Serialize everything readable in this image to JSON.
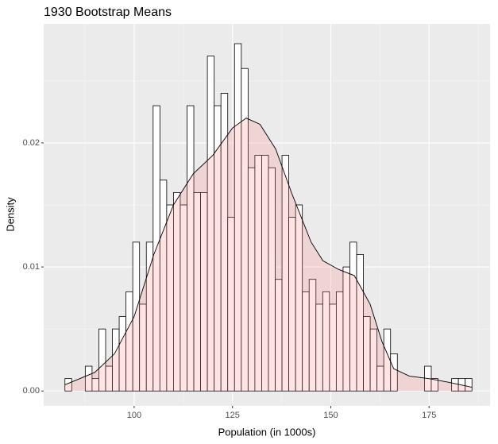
{
  "chart_data": {
    "type": "histogram",
    "title": "1930 Bootstrap Means",
    "xlabel": "Population (in 1000s)",
    "ylabel": "Density",
    "bins": [
      82.4,
      84.125,
      85.85,
      87.575,
      89.3,
      91.025,
      92.75,
      94.475,
      96.2,
      97.925,
      99.65,
      101.375,
      103.1,
      104.825,
      106.55,
      108.275,
      110,
      111.725,
      113.45,
      115.175,
      116.9,
      118.625,
      120.35,
      122.075,
      123.8,
      125.525,
      127.25,
      128.975,
      130.7,
      132.425,
      134.15,
      135.875,
      137.6,
      139.325,
      141.05,
      142.775,
      144.5,
      146.225,
      147.95,
      149.675,
      151.4,
      153.125,
      154.85,
      156.575,
      158.3,
      160.025,
      161.75,
      163.475,
      165.2,
      166.925,
      168.65,
      170.375,
      172.1,
      173.825,
      175.55,
      177.275,
      179,
      180.725,
      182.45,
      184.175,
      185.9
    ],
    "values": [
      0.001,
      0,
      0,
      0.002,
      0.001,
      0.005,
      0.002,
      0.005,
      0.006,
      0.008,
      0.012,
      0.007,
      0.012,
      0.023,
      0.017,
      0.015,
      0.016,
      0.015,
      0.023,
      0.016,
      0.016,
      0.027,
      0.023,
      0.024,
      0.014,
      0.028,
      0.026,
      0.018,
      0.019,
      0.019,
      0.018,
      0.009,
      0.019,
      0.014,
      0.015,
      0.008,
      0.009,
      0.007,
      0.008,
      0.007,
      0.008,
      0.01,
      0.012,
      0.011,
      0.006,
      0.005,
      0.002,
      0.005,
      0.003,
      0,
      0,
      0,
      0,
      0.002,
      0.001,
      0,
      0,
      0.001,
      0.001,
      0.001
    ],
    "bar_fill": "#ffffff",
    "bar_edge": "#000000",
    "density": {
      "x": [
        82.4,
        90,
        95,
        100,
        105,
        110,
        115,
        120,
        125,
        128.5,
        132,
        136,
        140,
        145,
        148,
        152,
        156,
        160,
        163,
        166,
        170,
        175,
        180,
        185.9
      ],
      "y": [
        0.0005,
        0.0015,
        0.003,
        0.006,
        0.011,
        0.015,
        0.0175,
        0.019,
        0.0212,
        0.022,
        0.0215,
        0.0195,
        0.016,
        0.012,
        0.0105,
        0.0098,
        0.0093,
        0.007,
        0.004,
        0.0018,
        0.0012,
        0.001,
        0.0007,
        0.0003
      ],
      "color": "#f8766d"
    },
    "xlim": [
      77.0,
      190.5
    ],
    "ylim": [
      -0.0012,
      0.0296
    ],
    "xticks": [
      100,
      125,
      150,
      175
    ],
    "yticks": [
      {
        "value": 0,
        "label": "0.00"
      },
      {
        "value": 0.01,
        "label": "0.01"
      },
      {
        "value": 0.02,
        "label": "0.02"
      }
    ],
    "grid": true
  }
}
